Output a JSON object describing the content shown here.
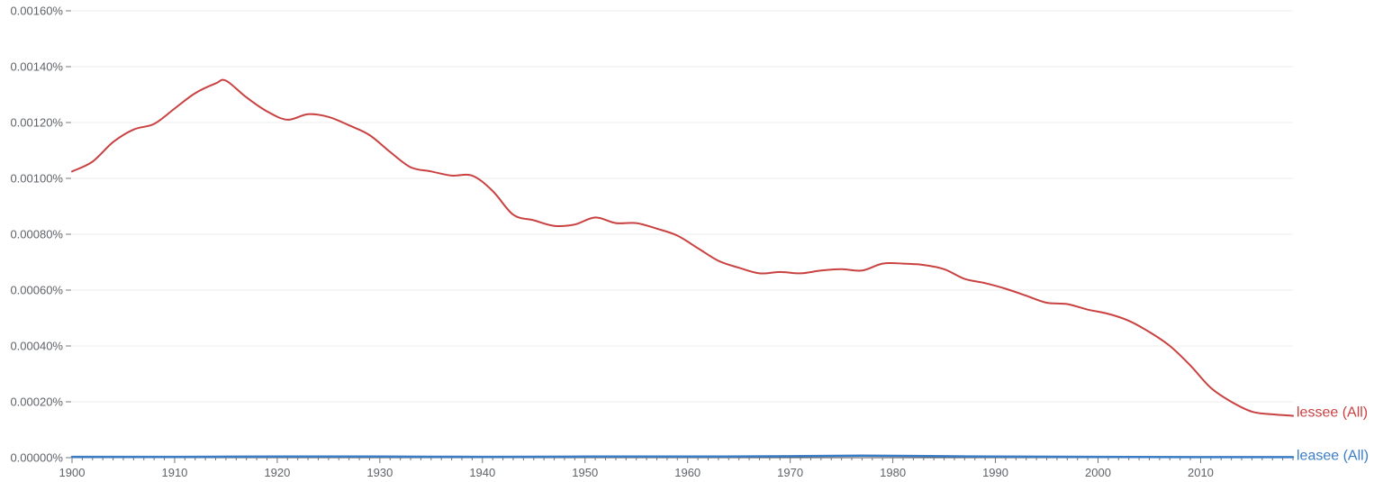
{
  "chart_data": {
    "type": "line",
    "title": "",
    "xlabel": "",
    "ylabel": "",
    "xlim": [
      1900,
      2019
    ],
    "ylim": [
      0,
      0.0016
    ],
    "grid": true,
    "y_ticks": [
      0,
      0.0002,
      0.0004,
      0.0006,
      0.0008,
      0.001,
      0.0012,
      0.0014,
      0.0016
    ],
    "y_tick_labels": [
      "0.00000%",
      "0.00020%",
      "0.00040%",
      "0.00060%",
      "0.00080%",
      "0.00100%",
      "0.00120%",
      "0.00140%",
      "0.00160%"
    ],
    "x_ticks": [
      1900,
      1910,
      1920,
      1930,
      1940,
      1950,
      1960,
      1970,
      1980,
      1990,
      2000,
      2010
    ],
    "x_tick_labels": [
      "1900",
      "1910",
      "1920",
      "1930",
      "1940",
      "1950",
      "1960",
      "1970",
      "1980",
      "1990",
      "2000",
      "2010"
    ],
    "series": [
      {
        "name": "lessee (All)",
        "color": "#c94141",
        "x": [
          1900,
          1902,
          1904,
          1906,
          1908,
          1910,
          1912,
          1914,
          1915,
          1917,
          1919,
          1921,
          1923,
          1925,
          1927,
          1929,
          1931,
          1933,
          1935,
          1937,
          1939,
          1941,
          1943,
          1945,
          1947,
          1949,
          1951,
          1953,
          1955,
          1957,
          1959,
          1961,
          1963,
          1965,
          1967,
          1969,
          1971,
          1973,
          1975,
          1977,
          1979,
          1981,
          1983,
          1985,
          1987,
          1989,
          1991,
          1993,
          1995,
          1997,
          1999,
          2001,
          2003,
          2005,
          2007,
          2009,
          2011,
          2013,
          2015,
          2017,
          2019
        ],
        "values": [
          0.001025,
          0.00106,
          0.00113,
          0.001175,
          0.001195,
          0.00125,
          0.001305,
          0.00134,
          0.00135,
          0.00129,
          0.00124,
          0.00121,
          0.00123,
          0.00122,
          0.00119,
          0.001155,
          0.001095,
          0.00104,
          0.001025,
          0.00101,
          0.00101,
          0.000955,
          0.00087,
          0.00085,
          0.00083,
          0.000835,
          0.00086,
          0.00084,
          0.00084,
          0.00082,
          0.000795,
          0.00075,
          0.000705,
          0.00068,
          0.00066,
          0.000665,
          0.00066,
          0.00067,
          0.000675,
          0.00067,
          0.000695,
          0.000695,
          0.00069,
          0.000675,
          0.00064,
          0.000625,
          0.000605,
          0.00058,
          0.000555,
          0.00055,
          0.00053,
          0.000515,
          0.00049,
          0.00045,
          0.0004,
          0.00033,
          0.00025,
          0.0002,
          0.000165,
          0.000155,
          0.00015
        ]
      },
      {
        "name": "leasee (All)",
        "color": "#3b7dc4",
        "x": [
          1900,
          1910,
          1920,
          1930,
          1940,
          1950,
          1960,
          1970,
          1977,
          1985,
          1990,
          2000,
          2010,
          2019
        ],
        "values": [
          3e-06,
          3e-06,
          4e-06,
          4e-06,
          3e-06,
          4e-06,
          4e-06,
          5e-06,
          7e-06,
          5e-06,
          4e-06,
          3e-06,
          2e-06,
          2e-06
        ]
      }
    ]
  }
}
